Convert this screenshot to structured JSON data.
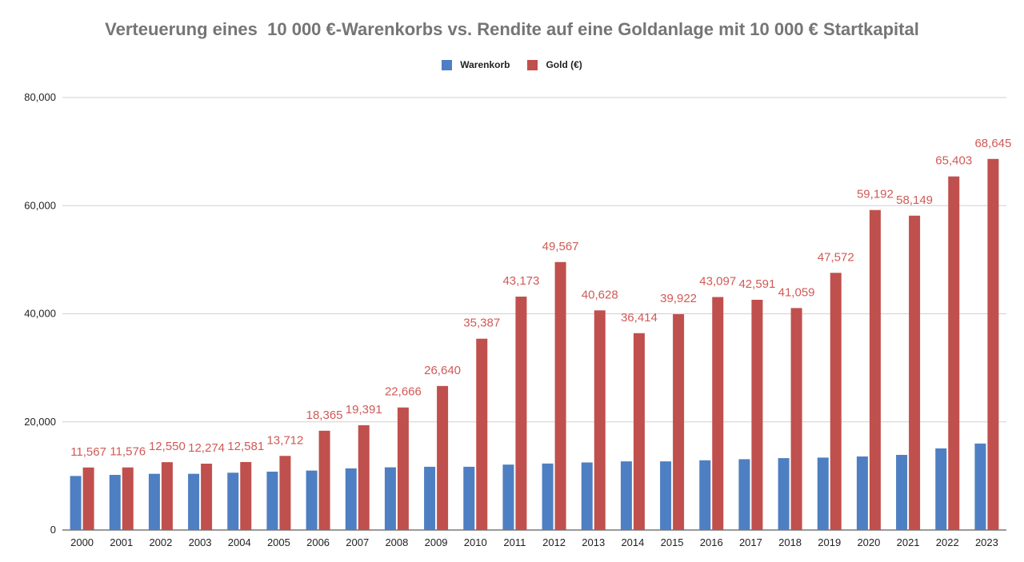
{
  "chart_data": {
    "type": "bar",
    "title": "Verteuerung eines  10 000 €-Warenkorbs vs. Rendite auf eine Goldanlage mit 10 000 € Startkapital",
    "xlabel": "",
    "ylabel": "",
    "ylim": [
      0,
      80000
    ],
    "yticks": [
      0,
      20000,
      40000,
      60000,
      80000
    ],
    "ytick_labels": [
      "0",
      "20,000",
      "40,000",
      "60,000",
      "80,000"
    ],
    "grid": true,
    "legend_position": "top-center",
    "categories": [
      "2000",
      "2001",
      "2002",
      "2003",
      "2004",
      "2005",
      "2006",
      "2007",
      "2008",
      "2009",
      "2010",
      "2011",
      "2012",
      "2013",
      "2014",
      "2015",
      "2016",
      "2017",
      "2018",
      "2019",
      "2020",
      "2021",
      "2022",
      "2023"
    ],
    "series": [
      {
        "name": "Warenkorb",
        "color": "#4e7fc2",
        "values": [
          10000,
          10200,
          10400,
          10400,
          10600,
          10800,
          11000,
          11400,
          11600,
          11700,
          11700,
          12100,
          12300,
          12500,
          12700,
          12700,
          12900,
          13100,
          13300,
          13400,
          13600,
          13900,
          15100,
          16000
        ],
        "labels": []
      },
      {
        "name": "Gold (€)",
        "color": "#c0504d",
        "values": [
          11567,
          11576,
          12550,
          12274,
          12581,
          13712,
          18365,
          19391,
          22666,
          26640,
          35387,
          43173,
          49567,
          40628,
          36414,
          39922,
          43097,
          42591,
          41059,
          47572,
          59192,
          58149,
          65403,
          68645
        ],
        "labels": [
          "11,567",
          "11,576",
          "12,550",
          "12,274",
          "12,581",
          "13,712",
          "18,365",
          "19,391",
          "22,666",
          "26,640",
          "35,387",
          "43,173",
          "49,567",
          "40,628",
          "36,414",
          "39,922",
          "43,097",
          "42,591",
          "41,059",
          "47,572",
          "59,192",
          "58,149",
          "65,403",
          "68,645"
        ]
      }
    ]
  }
}
